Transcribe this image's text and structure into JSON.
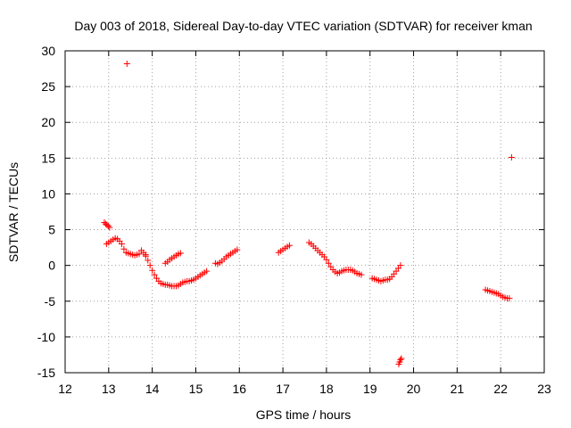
{
  "chart_data": {
    "type": "scatter",
    "title": "Day 003 of 2018, Sidereal Day-to-day VTEC variation (SDTVAR) for receiver kman",
    "xlabel": "GPS time / hours",
    "ylabel": "SDTVAR / TECUs",
    "xlim": [
      12,
      23
    ],
    "ylim": [
      -15,
      30
    ],
    "xticks": [
      12,
      13,
      14,
      15,
      16,
      17,
      18,
      19,
      20,
      21,
      22,
      23
    ],
    "yticks": [
      -15,
      -10,
      -5,
      0,
      5,
      10,
      15,
      20,
      25,
      30
    ],
    "grid": true,
    "marker": "+",
    "series_color": "#ff0000",
    "segments": [
      {
        "name": "seg-a",
        "x": [
          12.9,
          12.93,
          12.96,
          12.99,
          13.02
        ],
        "y": [
          6.0,
          5.8,
          5.7,
          5.5,
          5.3
        ]
      },
      {
        "name": "seg-b",
        "x": [
          12.95,
          13.0,
          13.05,
          13.1,
          13.15,
          13.2,
          13.25,
          13.3,
          13.35,
          13.4,
          13.45,
          13.5,
          13.55,
          13.6,
          13.65,
          13.7,
          13.75,
          13.8,
          13.85
        ],
        "y": [
          3.0,
          3.2,
          3.4,
          3.6,
          3.8,
          3.7,
          3.4,
          3.0,
          2.3,
          1.8,
          1.7,
          1.6,
          1.5,
          1.4,
          1.5,
          1.6,
          2.1,
          1.8,
          1.5
        ]
      },
      {
        "name": "seg-c",
        "x": [
          13.85,
          13.9,
          13.95,
          14.0,
          14.05,
          14.1,
          14.15,
          14.2,
          14.25,
          14.3,
          14.35,
          14.4,
          14.45,
          14.5,
          14.55,
          14.6,
          14.65,
          14.7,
          14.75,
          14.8,
          14.85,
          14.9,
          14.95,
          15.0,
          15.05,
          15.1,
          15.15,
          15.2,
          15.25
        ],
        "y": [
          1.3,
          0.7,
          0.0,
          -0.7,
          -1.3,
          -1.8,
          -2.2,
          -2.5,
          -2.6,
          -2.7,
          -2.7,
          -2.8,
          -2.9,
          -2.9,
          -2.9,
          -2.8,
          -2.6,
          -2.4,
          -2.3,
          -2.2,
          -2.2,
          -2.1,
          -2.0,
          -1.8,
          -1.6,
          -1.4,
          -1.2,
          -1.0,
          -0.8
        ]
      },
      {
        "name": "seg-d",
        "x": [
          14.3,
          14.35,
          14.4,
          14.45,
          14.5,
          14.55,
          14.6,
          14.65
        ],
        "y": [
          0.3,
          0.5,
          0.8,
          1.0,
          1.2,
          1.4,
          1.6,
          1.7
        ]
      },
      {
        "name": "seg-e",
        "x": [
          15.45,
          15.5,
          15.55,
          15.6,
          15.65,
          15.7,
          15.75,
          15.8,
          15.85,
          15.9,
          15.95
        ],
        "y": [
          0.3,
          0.2,
          0.4,
          0.6,
          0.9,
          1.2,
          1.4,
          1.6,
          1.8,
          2.0,
          2.2
        ]
      },
      {
        "name": "seg-f",
        "x": [
          16.9,
          16.95,
          17.0,
          17.05,
          17.1,
          17.15
        ],
        "y": [
          1.8,
          2.0,
          2.2,
          2.4,
          2.6,
          2.8
        ]
      },
      {
        "name": "seg-g",
        "x": [
          17.6,
          17.65,
          17.7,
          17.75,
          17.8,
          17.85,
          17.9,
          17.95,
          18.0,
          18.05,
          18.1,
          18.15,
          18.2,
          18.25,
          18.3,
          18.35,
          18.4,
          18.45,
          18.5,
          18.55,
          18.6,
          18.65,
          18.7,
          18.75,
          18.8
        ],
        "y": [
          3.2,
          3.0,
          2.7,
          2.4,
          2.1,
          1.8,
          1.5,
          1.2,
          0.8,
          0.3,
          -0.2,
          -0.6,
          -0.9,
          -1.1,
          -1.0,
          -0.8,
          -0.7,
          -0.6,
          -0.6,
          -0.6,
          -0.7,
          -0.9,
          -1.1,
          -1.2,
          -1.3
        ]
      },
      {
        "name": "seg-h",
        "x": [
          19.05,
          19.1,
          19.15,
          19.2,
          19.25,
          19.3,
          19.35,
          19.4,
          19.45,
          19.5,
          19.55,
          19.6,
          19.65,
          19.7
        ],
        "y": [
          -1.8,
          -1.9,
          -2.0,
          -2.1,
          -2.2,
          -2.1,
          -2.0,
          -2.0,
          -1.9,
          -1.6,
          -1.2,
          -0.8,
          -0.4,
          0.0
        ]
      },
      {
        "name": "seg-i",
        "x": [
          19.66,
          19.68,
          19.7,
          19.72
        ],
        "y": [
          -13.8,
          -13.5,
          -13.2,
          -13.0
        ]
      },
      {
        "name": "seg-j",
        "x": [
          21.65,
          21.7,
          21.75,
          21.8,
          21.85,
          21.9,
          21.95,
          22.0,
          22.05,
          22.1,
          22.15,
          22.2
        ],
        "y": [
          -3.4,
          -3.5,
          -3.6,
          -3.7,
          -3.8,
          -3.9,
          -4.0,
          -4.2,
          -4.4,
          -4.5,
          -4.6,
          -4.6
        ]
      },
      {
        "name": "outlier-1",
        "x": [
          13.42
        ],
        "y": [
          28.2
        ]
      },
      {
        "name": "outlier-2",
        "x": [
          22.25
        ],
        "y": [
          15.1
        ]
      }
    ]
  }
}
